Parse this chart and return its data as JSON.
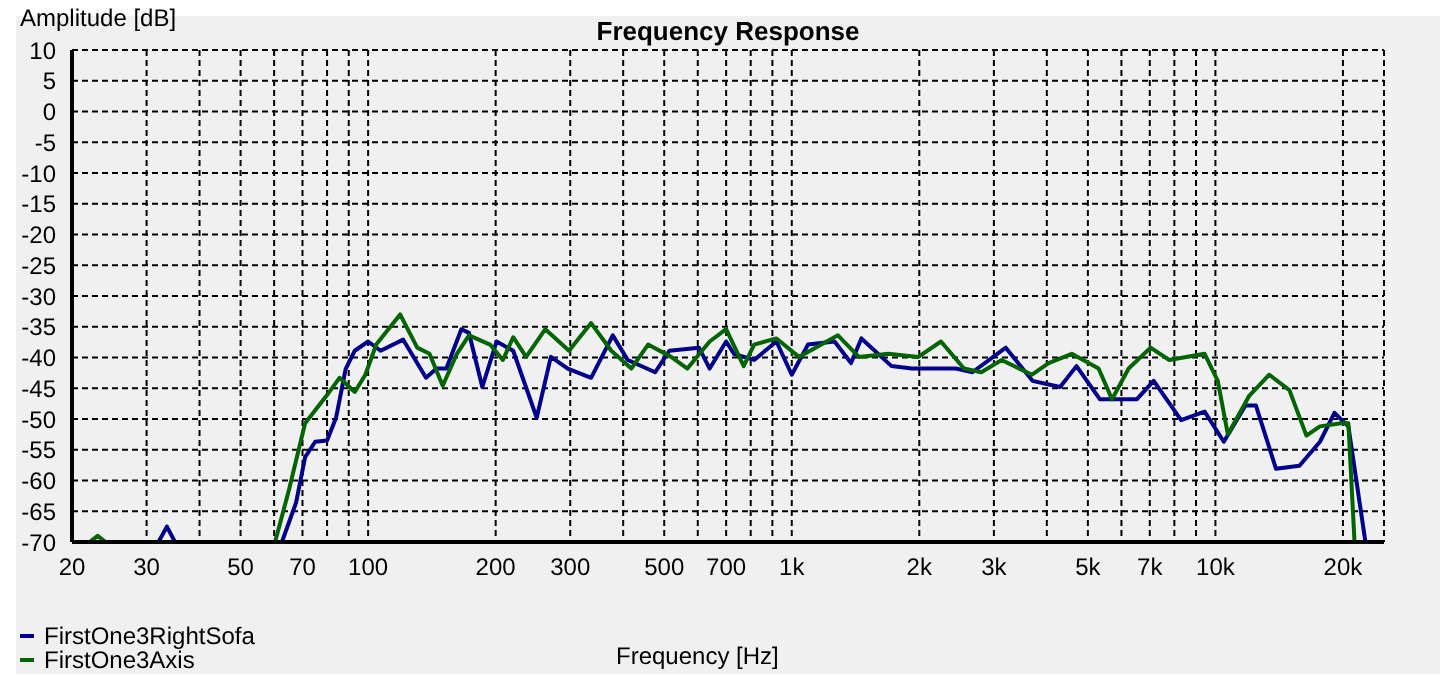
{
  "chart_data": {
    "type": "line",
    "title": "Frequency Response",
    "xlabel": "Frequency [Hz]",
    "ylabel": "Amplitude [dB]",
    "xlim": [
      20,
      25000
    ],
    "ylim": [
      -70,
      10
    ],
    "log": "x",
    "grid": true,
    "legend": "bottom left",
    "marker": "none",
    "line_style": "solid",
    "xticks": [
      20,
      30,
      {
        "value": 40,
        "label": null
      },
      50,
      {
        "value": 60,
        "label": null
      },
      70,
      {
        "value": 80,
        "label": null
      },
      {
        "value": 90,
        "label": null
      },
      100,
      200,
      300,
      {
        "value": 400,
        "label": null
      },
      500,
      {
        "value": 600,
        "label": null
      },
      700,
      {
        "value": 800,
        "label": null
      },
      {
        "value": 900,
        "label": null
      },
      {
        "value": 1000,
        "label": "1k"
      },
      {
        "value": 2000,
        "label": "2k"
      },
      {
        "value": 3000,
        "label": "3k"
      },
      {
        "value": 4000,
        "label": null
      },
      {
        "value": 5000,
        "label": "5k"
      },
      {
        "value": 6000,
        "label": null
      },
      {
        "value": 7000,
        "label": "7k"
      },
      {
        "value": 8000,
        "label": null
      },
      {
        "value": 9000,
        "label": null
      },
      {
        "value": 10000,
        "label": "10k"
      },
      {
        "value": 20000,
        "label": "20k"
      }
    ],
    "yticks": [
      -70,
      -65,
      -60,
      -55,
      -50,
      -45,
      -40,
      -35,
      -30,
      -25,
      -20,
      -15,
      -10,
      -5,
      0,
      5,
      10
    ],
    "series": [
      {
        "name": "FirstOne3RightSofa",
        "color": "#00008b",
        "x": [
          20,
          32,
          33.5,
          35,
          62.6,
          67.6,
          71,
          75,
          80,
          84,
          88.5,
          93,
          100,
          107,
          121,
          137,
          145,
          153,
          166,
          173,
          186,
          201,
          220,
          250,
          270,
          296,
          336,
          378,
          410,
          476,
          514,
          604,
          640,
          700,
          730,
          815,
          920,
          1000,
          1092,
          1262,
          1380,
          1460,
          1720,
          1920,
          2440,
          2670,
          3200,
          3700,
          4300,
          4700,
          5340,
          6520,
          7150,
          8300,
          9430,
          10470,
          11770,
          12460,
          13900,
          15790,
          17650,
          19100,
          20600,
          22600
        ],
        "values": [
          -70,
          -70,
          -67.5,
          -70,
          -70,
          -63.6,
          -56.2,
          -53.7,
          -53.5,
          -49.8,
          -41.9,
          -38.9,
          -37.4,
          -38.9,
          -37.1,
          -43.3,
          -41.8,
          -41.8,
          -35.4,
          -36,
          -44.8,
          -37.4,
          -38.9,
          -49.8,
          -39.9,
          -41.8,
          -43.3,
          -36.4,
          -40.4,
          -42.4,
          -38.9,
          -38.4,
          -41.8,
          -37.4,
          -39.4,
          -40.4,
          -37.4,
          -42.8,
          -37.9,
          -37.4,
          -40.9,
          -36.9,
          -41.4,
          -41.8,
          -41.8,
          -42.4,
          -38.4,
          -43.8,
          -44.8,
          -41.4,
          -46.8,
          -46.8,
          -43.8,
          -50.2,
          -48.8,
          -53.7,
          -47.8,
          -47.8,
          -58.1,
          -57.6,
          -53.7,
          -49,
          -51.2,
          -70
        ]
      },
      {
        "name": "FirstOne3Axis",
        "color": "#006400",
        "x": [
          20,
          22,
          23,
          24,
          60.3,
          65,
          71,
          80.6,
          85.6,
          93,
          98.5,
          104.5,
          119,
          130.6,
          139.6,
          150,
          162,
          173,
          194,
          208,
          220,
          236,
          262,
          298,
          336,
          375,
          418,
          458,
          519,
          567,
          640,
          700,
          770,
          815,
          920,
          1040,
          1285,
          1440,
          1690,
          1990,
          2250,
          2550,
          2800,
          3130,
          3690,
          4040,
          4580,
          5300,
          5700,
          6240,
          7030,
          7780,
          9430,
          10130,
          10700,
          12000,
          13400,
          14950,
          16400,
          17650,
          19800,
          20600,
          21300
        ],
        "values": [
          -70,
          -70,
          -69,
          -70,
          -70,
          -61.6,
          -50.7,
          -45.8,
          -43.3,
          -45.6,
          -42.8,
          -37.9,
          -33,
          -38.4,
          -39.4,
          -44.6,
          -39.4,
          -36.4,
          -37.9,
          -40.4,
          -36.7,
          -39.9,
          -35.4,
          -38.9,
          -34.4,
          -38.9,
          -41.8,
          -37.9,
          -39.9,
          -41.8,
          -37.4,
          -35.4,
          -41.4,
          -37.9,
          -36.9,
          -39.9,
          -36.4,
          -39.9,
          -39.4,
          -39.9,
          -37.4,
          -41.8,
          -42.4,
          -40.4,
          -42.8,
          -40.9,
          -39.4,
          -41.8,
          -46.8,
          -41.8,
          -38.4,
          -40.4,
          -39.4,
          -43.8,
          -52.5,
          -46.3,
          -42.8,
          -45.3,
          -52.7,
          -51.2,
          -50.7,
          -50.7,
          -70
        ]
      }
    ]
  }
}
